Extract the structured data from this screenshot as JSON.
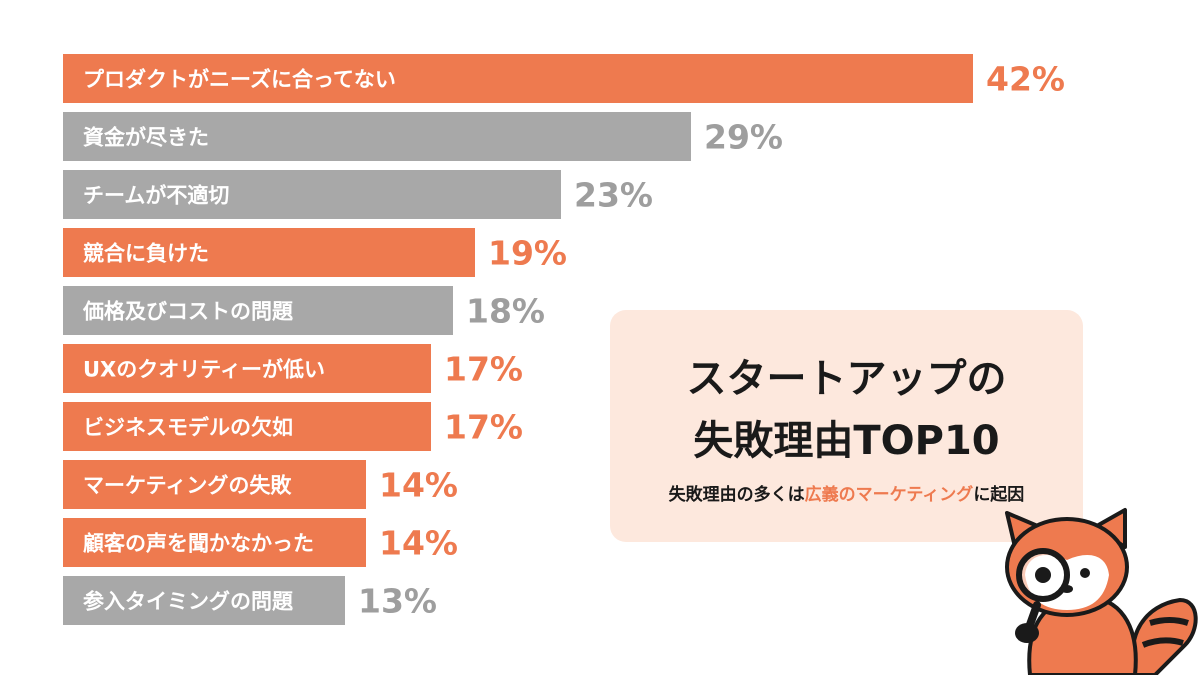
{
  "chart_data": {
    "type": "bar",
    "orientation": "horizontal",
    "categories": [
      "プロダクトがニーズに合ってない",
      "資金が尽きた",
      "チームが不適切",
      "競合に負けた",
      "価格及びコストの問題",
      "UXのクオリティーが低い",
      "ビジネスモデルの欠如",
      "マーケティングの失敗",
      "顧客の声を聞かなかった",
      "参入タイミングの問題"
    ],
    "values": [
      42,
      29,
      23,
      19,
      18,
      17,
      17,
      14,
      14,
      13
    ],
    "value_labels": [
      "42%",
      "29%",
      "23%",
      "19%",
      "18%",
      "17%",
      "17%",
      "14%",
      "14%",
      "13%"
    ],
    "highlighted": [
      true,
      false,
      false,
      true,
      false,
      true,
      true,
      true,
      true,
      false
    ],
    "xlim": [
      0,
      42
    ],
    "grid": false,
    "colors": {
      "highlight": "#ee7a4f",
      "normal": "#a8a8a8",
      "highlight_text": "#ee7a4f",
      "normal_text": "#9e9e9e"
    }
  },
  "info": {
    "title_line1": "スタートアップの",
    "title_line2": "失敗理由TOP10",
    "subtitle_pre": "失敗理由の多くは",
    "subtitle_highlight": "広義のマーケティング",
    "subtitle_post": "に起因"
  },
  "mascot": {
    "icon": "red-panda-with-magnifying-glass-icon"
  }
}
